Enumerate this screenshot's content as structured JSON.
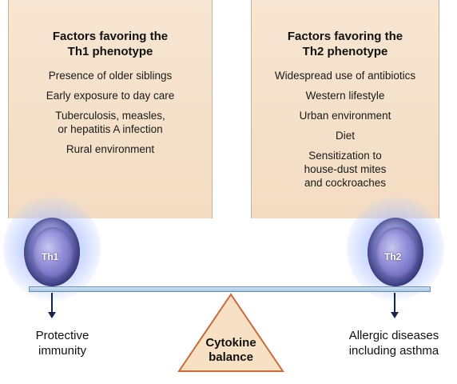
{
  "th1_panel": {
    "title": "Factors favoring the\nTh1 phenotype",
    "items": [
      "Presence of older siblings",
      "Early exposure to day care",
      "Tuberculosis, measles,\nor hepatitis A infection",
      "Rural environment"
    ]
  },
  "th2_panel": {
    "title": "Factors favoring the\nTh2 phenotype",
    "items": [
      "Widespread use of antibiotics",
      "Western lifestyle",
      "Urban environment",
      "Diet",
      "Sensitization to\nhouse-dust mites\nand cockroaches"
    ]
  },
  "cells": {
    "left_label": "Th1",
    "right_label": "Th2"
  },
  "outcomes": {
    "left": "Protective\nimmunity",
    "right": "Allergic diseases\nincluding asthma"
  },
  "fulcrum": {
    "label": "Cytokine\nbalance"
  },
  "colors": {
    "panel_fill": "#f5e1cb",
    "beam_fill": "#bcd5ec",
    "fulcrum_fill": "#f7e0c4",
    "fulcrum_stroke": "#c96a3a",
    "cell_glow": "#a8b8ff",
    "arrow": "#15244a"
  }
}
